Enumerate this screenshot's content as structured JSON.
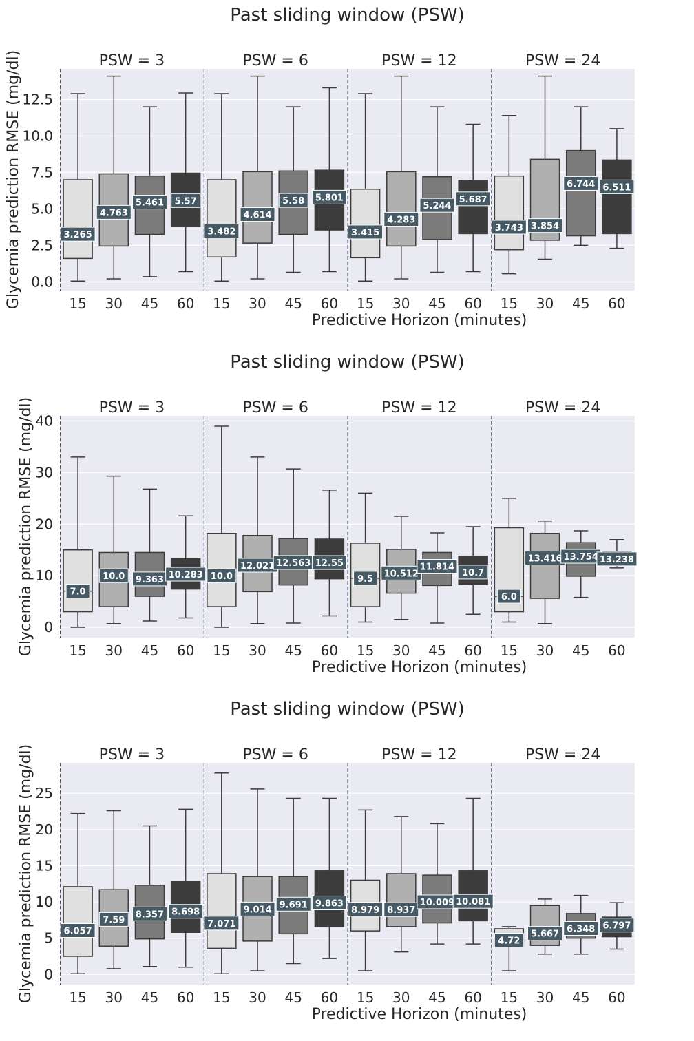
{
  "style": {
    "background": "#eaeaf2",
    "grid": "#ffffff",
    "box_fills": [
      "#e0e0e0",
      "#b0b0b0",
      "#7b7b7b",
      "#3c3c3c"
    ],
    "line_color": "#3c3c3c",
    "label_bg": "#455a64",
    "label_text": "#ffffff",
    "divider": "#4c4c6a"
  },
  "chart_data": [
    {
      "type": "box",
      "title": "Past sliding window (PSW)",
      "xlabel": "Predictive Horizon (minutes)",
      "ylabel": "Glycemia prediction RMSE (mg/dl)",
      "ylim": [
        -0.6,
        14.6
      ],
      "yticks": [
        0.0,
        2.5,
        5.0,
        7.5,
        10.0,
        12.5
      ],
      "ytick_labels": [
        "0.0",
        "2.5",
        "5.0",
        "7.5",
        "10.0",
        "12.5"
      ],
      "categories": [
        "15",
        "30",
        "45",
        "60"
      ],
      "groups": [
        {
          "title": "PSW = 3",
          "boxes": [
            {
              "ph": "15",
              "whislo": 0.05,
              "q1": 1.6,
              "med": 3.265,
              "q3": 7.0,
              "whishi": 12.9,
              "label": "3.265"
            },
            {
              "ph": "30",
              "whislo": 0.2,
              "q1": 2.45,
              "med": 4.763,
              "q3": 7.4,
              "whishi": 14.1,
              "label": "4.763"
            },
            {
              "ph": "45",
              "whislo": 0.35,
              "q1": 3.25,
              "med": 5.461,
              "q3": 7.25,
              "whishi": 12.0,
              "label": "5.461"
            },
            {
              "ph": "60",
              "whislo": 0.7,
              "q1": 3.8,
              "med": 5.57,
              "q3": 7.45,
              "whishi": 12.95,
              "label": "5.57"
            }
          ]
        },
        {
          "title": "PSW = 6",
          "boxes": [
            {
              "ph": "15",
              "whislo": 0.05,
              "q1": 1.7,
              "med": 3.482,
              "q3": 7.0,
              "whishi": 12.9,
              "label": "3.482"
            },
            {
              "ph": "30",
              "whislo": 0.2,
              "q1": 2.65,
              "med": 4.614,
              "q3": 7.55,
              "whishi": 14.1,
              "label": "4.614"
            },
            {
              "ph": "45",
              "whislo": 0.65,
              "q1": 3.25,
              "med": 5.58,
              "q3": 7.6,
              "whishi": 12.0,
              "label": "5.58"
            },
            {
              "ph": "60",
              "whislo": 0.7,
              "q1": 3.55,
              "med": 5.801,
              "q3": 7.65,
              "whishi": 13.3,
              "label": "5.801"
            }
          ]
        },
        {
          "title": "PSW = 12",
          "boxes": [
            {
              "ph": "15",
              "whislo": 0.05,
              "q1": 1.65,
              "med": 3.415,
              "q3": 6.35,
              "whishi": 12.9,
              "label": "3.415"
            },
            {
              "ph": "30",
              "whislo": 0.2,
              "q1": 2.45,
              "med": 4.283,
              "q3": 7.55,
              "whishi": 14.1,
              "label": "4.283"
            },
            {
              "ph": "45",
              "whislo": 0.65,
              "q1": 2.9,
              "med": 5.244,
              "q3": 7.2,
              "whishi": 12.0,
              "label": "5.244"
            },
            {
              "ph": "60",
              "whislo": 0.7,
              "q1": 3.3,
              "med": 5.687,
              "q3": 6.95,
              "whishi": 10.8,
              "label": "5.687"
            }
          ]
        },
        {
          "title": "PSW = 24",
          "boxes": [
            {
              "ph": "15",
              "whislo": 0.55,
              "q1": 2.2,
              "med": 3.743,
              "q3": 7.25,
              "whishi": 11.4,
              "label": "3.743"
            },
            {
              "ph": "30",
              "whislo": 1.55,
              "q1": 2.85,
              "med": 3.854,
              "q3": 8.4,
              "whishi": 14.1,
              "label": "3.854"
            },
            {
              "ph": "45",
              "whislo": 2.5,
              "q1": 3.15,
              "med": 6.744,
              "q3": 9.0,
              "whishi": 12.0,
              "label": "6.744"
            },
            {
              "ph": "60",
              "whislo": 2.3,
              "q1": 3.3,
              "med": 6.511,
              "q3": 8.35,
              "whishi": 10.5,
              "label": "6.511"
            }
          ]
        }
      ]
    },
    {
      "type": "box",
      "title": "Past sliding window (PSW)",
      "xlabel": "Predictive Horizon (minutes)",
      "ylabel": "Glycemia prediction RMSE (mg/dl)",
      "ylim": [
        -2.0,
        41.0
      ],
      "yticks": [
        0,
        10,
        20,
        30,
        40
      ],
      "ytick_labels": [
        "0",
        "10",
        "20",
        "30",
        "40"
      ],
      "categories": [
        "15",
        "30",
        "45",
        "60"
      ],
      "groups": [
        {
          "title": "PSW = 3",
          "boxes": [
            {
              "ph": "15",
              "whislo": 0.0,
              "q1": 3.0,
              "med": 7.0,
              "q3": 15.0,
              "whishi": 33.0,
              "label": "7.0"
            },
            {
              "ph": "30",
              "whislo": 0.7,
              "q1": 4.0,
              "med": 10.0,
              "q3": 14.5,
              "whishi": 29.3,
              "label": "10.0"
            },
            {
              "ph": "45",
              "whislo": 1.2,
              "q1": 6.0,
              "med": 9.363,
              "q3": 14.5,
              "whishi": 26.8,
              "label": "9.363"
            },
            {
              "ph": "60",
              "whislo": 1.8,
              "q1": 7.4,
              "med": 10.283,
              "q3": 13.3,
              "whishi": 21.6,
              "label": "10.283"
            }
          ]
        },
        {
          "title": "PSW = 6",
          "boxes": [
            {
              "ph": "15",
              "whislo": 0.0,
              "q1": 4.0,
              "med": 10.0,
              "q3": 18.2,
              "whishi": 39.0,
              "label": "10.0"
            },
            {
              "ph": "30",
              "whislo": 0.7,
              "q1": 6.9,
              "med": 12.021,
              "q3": 17.8,
              "whishi": 33.0,
              "label": "12.021"
            },
            {
              "ph": "45",
              "whislo": 0.8,
              "q1": 8.2,
              "med": 12.563,
              "q3": 17.2,
              "whishi": 30.7,
              "label": "12.563"
            },
            {
              "ph": "60",
              "whislo": 2.2,
              "q1": 9.4,
              "med": 12.55,
              "q3": 17.1,
              "whishi": 26.6,
              "label": "12.55"
            }
          ]
        },
        {
          "title": "PSW = 12",
          "boxes": [
            {
              "ph": "15",
              "whislo": 1.0,
              "q1": 4.0,
              "med": 9.5,
              "q3": 16.3,
              "whishi": 26.0,
              "label": "9.5"
            },
            {
              "ph": "30",
              "whislo": 1.5,
              "q1": 6.6,
              "med": 10.512,
              "q3": 15.1,
              "whishi": 21.5,
              "label": "10.512"
            },
            {
              "ph": "45",
              "whislo": 0.8,
              "q1": 8.1,
              "med": 11.814,
              "q3": 14.5,
              "whishi": 18.3,
              "label": "11.814"
            },
            {
              "ph": "60",
              "whislo": 2.5,
              "q1": 8.3,
              "med": 10.7,
              "q3": 13.8,
              "whishi": 19.5,
              "label": "10.7"
            }
          ]
        },
        {
          "title": "PSW = 24",
          "boxes": [
            {
              "ph": "15",
              "whislo": 1.0,
              "q1": 3.0,
              "med": 6.0,
              "q3": 19.3,
              "whishi": 25.0,
              "label": "6.0"
            },
            {
              "ph": "30",
              "whislo": 0.7,
              "q1": 5.6,
              "med": 13.416,
              "q3": 18.2,
              "whishi": 20.6,
              "label": "13.416"
            },
            {
              "ph": "45",
              "whislo": 5.8,
              "q1": 9.9,
              "med": 13.754,
              "q3": 16.4,
              "whishi": 18.7,
              "label": "13.754"
            },
            {
              "ph": "60",
              "whislo": 11.5,
              "q1": 12.0,
              "med": 13.238,
              "q3": 14.7,
              "whishi": 17.0,
              "label": "13.238"
            }
          ]
        }
      ]
    },
    {
      "type": "box",
      "title": "Past sliding window (PSW)",
      "xlabel": "Predictive Horizon (minutes)",
      "ylabel": "Glycemia prediction RMSE (mg/dl)",
      "ylim": [
        -1.4,
        29.2
      ],
      "yticks": [
        0,
        5,
        10,
        15,
        20,
        25
      ],
      "ytick_labels": [
        "0",
        "5",
        "10",
        "15",
        "20",
        "25"
      ],
      "categories": [
        "15",
        "30",
        "45",
        "60"
      ],
      "groups": [
        {
          "title": "PSW = 3",
          "boxes": [
            {
              "ph": "15",
              "whislo": 0.1,
              "q1": 2.5,
              "med": 6.057,
              "q3": 12.1,
              "whishi": 22.2,
              "label": "6.057"
            },
            {
              "ph": "30",
              "whislo": 0.8,
              "q1": 3.9,
              "med": 7.59,
              "q3": 11.7,
              "whishi": 22.6,
              "label": "7.59"
            },
            {
              "ph": "45",
              "whislo": 1.1,
              "q1": 4.9,
              "med": 8.357,
              "q3": 12.3,
              "whishi": 20.5,
              "label": "8.357"
            },
            {
              "ph": "60",
              "whislo": 1.0,
              "q1": 5.8,
              "med": 8.698,
              "q3": 12.8,
              "whishi": 22.8,
              "label": "8.698"
            }
          ]
        },
        {
          "title": "PSW = 6",
          "boxes": [
            {
              "ph": "15",
              "whislo": 0.1,
              "q1": 3.6,
              "med": 7.071,
              "q3": 13.9,
              "whishi": 27.8,
              "label": "7.071"
            },
            {
              "ph": "30",
              "whislo": 0.5,
              "q1": 4.6,
              "med": 9.014,
              "q3": 13.5,
              "whishi": 25.6,
              "label": "9.014"
            },
            {
              "ph": "45",
              "whislo": 1.5,
              "q1": 5.6,
              "med": 9.691,
              "q3": 13.5,
              "whishi": 24.3,
              "label": "9.691"
            },
            {
              "ph": "60",
              "whislo": 2.2,
              "q1": 6.6,
              "med": 9.863,
              "q3": 14.3,
              "whishi": 24.3,
              "label": "9.863"
            }
          ]
        },
        {
          "title": "PSW = 12",
          "boxes": [
            {
              "ph": "15",
              "whislo": 0.5,
              "q1": 6.0,
              "med": 8.979,
              "q3": 13.0,
              "whishi": 22.7,
              "label": "8.979"
            },
            {
              "ph": "30",
              "whislo": 3.1,
              "q1": 6.6,
              "med": 8.937,
              "q3": 13.9,
              "whishi": 21.8,
              "label": "8.937"
            },
            {
              "ph": "45",
              "whislo": 4.2,
              "q1": 7.1,
              "med": 10.009,
              "q3": 13.7,
              "whishi": 20.8,
              "label": "10.009"
            },
            {
              "ph": "60",
              "whislo": 4.2,
              "q1": 7.4,
              "med": 10.081,
              "q3": 14.3,
              "whishi": 24.3,
              "label": "10.081"
            }
          ]
        },
        {
          "title": "PSW = 24",
          "boxes": [
            {
              "ph": "15",
              "whislo": 0.5,
              "q1": 3.8,
              "med": 4.72,
              "q3": 6.3,
              "whishi": 6.6,
              "label": "4.72"
            },
            {
              "ph": "30",
              "whislo": 2.8,
              "q1": 4.0,
              "med": 5.667,
              "q3": 9.5,
              "whishi": 10.4,
              "label": "5.667"
            },
            {
              "ph": "45",
              "whislo": 2.8,
              "q1": 5.0,
              "med": 6.348,
              "q3": 8.4,
              "whishi": 10.9,
              "label": "6.348"
            },
            {
              "ph": "60",
              "whislo": 3.5,
              "q1": 5.2,
              "med": 6.797,
              "q3": 7.9,
              "whishi": 9.9,
              "label": "6.797"
            }
          ]
        }
      ]
    }
  ]
}
